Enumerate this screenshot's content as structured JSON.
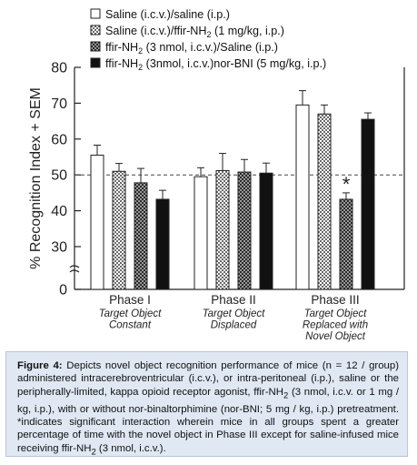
{
  "chart_data": {
    "type": "bar",
    "ylabel": "% Recognition Index + SEM",
    "ylim": [
      0,
      80
    ],
    "yticks": [
      "0",
      "30",
      "40",
      "50",
      "60",
      "70",
      "80"
    ],
    "axis_break": true,
    "reference_line": 50,
    "categories": [
      {
        "label": "Phase I",
        "sub": [
          "Target Object",
          "Constant"
        ]
      },
      {
        "label": "Phase II",
        "sub": [
          "Target Object",
          "Displaced"
        ]
      },
      {
        "label": "Phase III",
        "sub": [
          "Target Object",
          "Replaced with",
          "Novel Object"
        ]
      }
    ],
    "series": [
      {
        "name": "Saline (i.c.v.)/saline (i.p.)",
        "pattern": "white",
        "values": [
          55.5,
          49.5,
          69.5
        ],
        "errors": [
          2.8,
          2.5,
          4.0
        ]
      },
      {
        "name": "Saline (i.c.v.)/ffir-NH₂ (1 mg/kg, i.p.)",
        "pattern": "checker-light",
        "values": [
          51.0,
          51.2,
          67.0
        ],
        "errors": [
          2.2,
          4.8,
          2.5
        ]
      },
      {
        "name": "ffir-NH₂ (3 nmol, i.c.v.)/Saline (i.p.)",
        "pattern": "checker-dark",
        "values": [
          47.8,
          50.8,
          43.2
        ],
        "errors": [
          4.0,
          3.5,
          1.8
        ]
      },
      {
        "name": "ffir-NH₂ (3nmol, i.c.v.)nor-BNI (5 mg/kg, i.p.)",
        "pattern": "black",
        "values": [
          43.2,
          50.5,
          65.5
        ],
        "errors": [
          2.5,
          2.8,
          1.8
        ]
      }
    ],
    "annotations": [
      {
        "text": "*",
        "category": 2,
        "series": 2
      }
    ],
    "legend_position": "top"
  },
  "legend": [
    {
      "pre": "Saline (i.c.v.)/saline (i.p.)",
      "sub": "",
      "post": ""
    },
    {
      "pre": "Saline (i.c.v.)/ffir-NH",
      "sub": "2",
      "post": " (1 mg/kg, i.p.)"
    },
    {
      "pre": "ffir-NH",
      "sub": "2",
      "post": " (3 nmol, i.c.v.)/Saline (i.p.)"
    },
    {
      "pre": "ffir-NH",
      "sub": "2",
      "post": " (3nmol, i.c.v.)nor-BNI (5 mg/kg, i.p.)"
    }
  ],
  "caption": {
    "label": "Figure 4:",
    "text_1": " Depicts novel object recognition performance of mice (n = 12 / group) administered intracerebroventricular (i.c.v.), or intra-peritoneal (i.p.), saline or the peripherally-limited, kappa opioid receptor agonist, ffir-NH",
    "sub_1": "2",
    "text_2": " (3 nmol, i.c.v. or 1 mg / kg, i.p.), with or without nor-binaltorphimine (nor-BNI; 5 mg / kg, i.p.) pretreatment. *indicates significant interaction wherein mice in all groups spent a greater percentage of time with the novel object in Phase III except for saline-infused mice receiving ffir-NH",
    "sub_2": "2",
    "text_3": " (3 nmol, i.c.v.)."
  }
}
